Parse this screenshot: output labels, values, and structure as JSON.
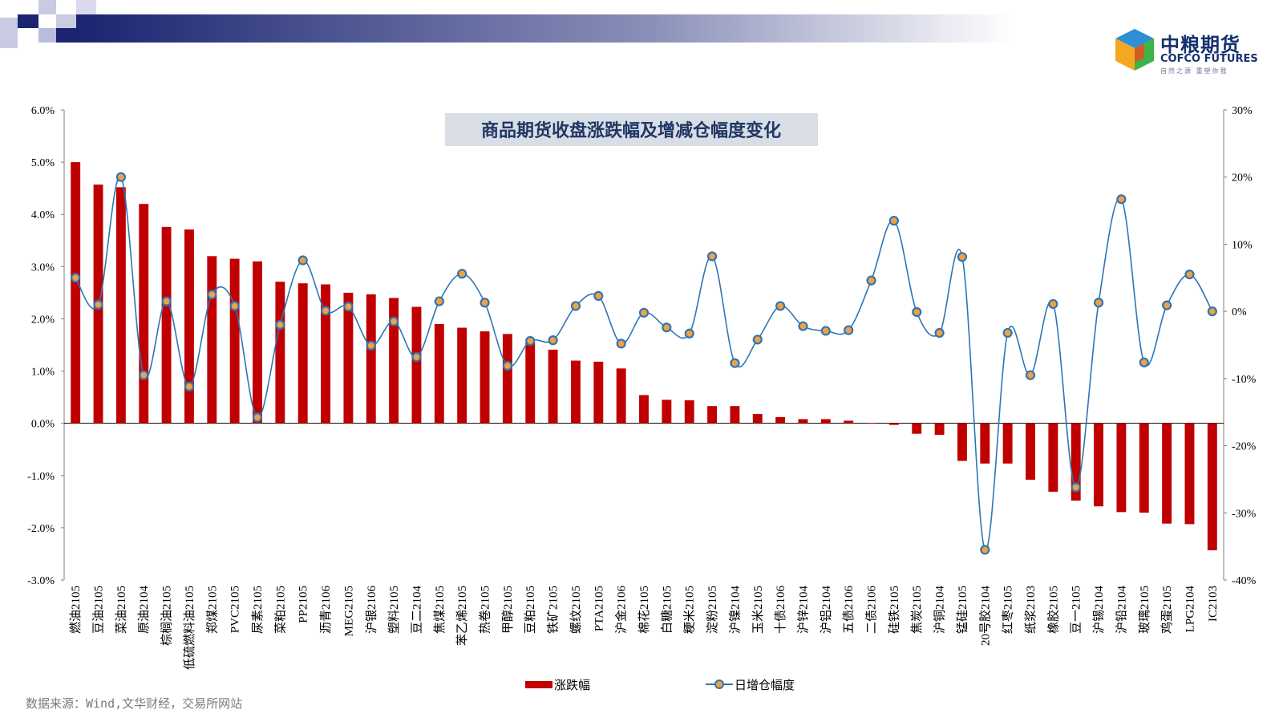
{
  "source": "数据来源：Wind,文华财经，交易所网站",
  "logo": {
    "cn": "中粮期货",
    "en": "COFCO FUTURES",
    "sub": "自然之源 重塑你我"
  },
  "colors": {
    "bar": "#c00000",
    "line": "#2e75b6",
    "marker": "#f2a040",
    "title_bg": "#d9dde6",
    "title_text": "#1f3864"
  },
  "chart_data": {
    "type": "bar",
    "title": "商品期货收盘涨跌幅及增减仓幅度变化",
    "categories": [
      "燃油2105",
      "豆油2105",
      "菜油2105",
      "原油2104",
      "棕榈油2105",
      "低硫燃料油2105",
      "郑煤2105",
      "PVC2105",
      "尿素2105",
      "菜粕2105",
      "PP2105",
      "沥青2106",
      "MEG2105",
      "沪银2106",
      "塑料2105",
      "豆二2104",
      "焦煤2105",
      "苯乙烯2105",
      "热卷2105",
      "甲醇2105",
      "豆粕2105",
      "铁矿2105",
      "螺纹2105",
      "PTA2105",
      "沪金2106",
      "棉花2105",
      "白糖2105",
      "粳米2105",
      "淀粉2105",
      "沪镍2104",
      "玉米2105",
      "十债2106",
      "沪锌2104",
      "沪铝2104",
      "五债2106",
      "二债2106",
      "硅铁2105",
      "焦炭2105",
      "沪铜2104",
      "锰硅2105",
      "20号胶2104",
      "红枣2105",
      "纸浆2103",
      "橡胶2105",
      "豆一2105",
      "沪锡2104",
      "沪铅2104",
      "玻璃2105",
      "鸡蛋2105",
      "LPG2104",
      "IC2103"
    ],
    "series": [
      {
        "name": "涨跌幅",
        "axis": "left",
        "type": "bar",
        "values": [
          5.0,
          4.57,
          4.52,
          4.2,
          3.76,
          3.71,
          3.2,
          3.15,
          3.1,
          2.71,
          2.68,
          2.66,
          2.5,
          2.47,
          2.4,
          2.23,
          1.9,
          1.83,
          1.76,
          1.71,
          1.55,
          1.41,
          1.2,
          1.18,
          1.05,
          0.54,
          0.45,
          0.44,
          0.33,
          0.33,
          0.18,
          0.12,
          0.08,
          0.08,
          0.05,
          0.01,
          -0.03,
          -0.2,
          -0.22,
          -0.72,
          -0.77,
          -0.77,
          -1.08,
          -1.31,
          -1.48,
          -1.59,
          -1.7,
          -1.71,
          -1.92,
          -1.93,
          -2.43
        ]
      },
      {
        "name": "日增仓幅度",
        "axis": "right",
        "type": "line",
        "values": [
          5.0,
          1.0,
          20.0,
          -9.5,
          1.5,
          -11.2,
          2.5,
          0.8,
          -15.8,
          -2.0,
          7.6,
          0.1,
          0.7,
          -5.1,
          -1.5,
          -6.8,
          1.5,
          5.6,
          1.3,
          -8.1,
          -4.4,
          -4.3,
          0.8,
          2.3,
          -4.8,
          -0.2,
          -2.4,
          -3.3,
          8.2,
          -7.7,
          -4.2,
          0.8,
          -2.2,
          -2.9,
          -2.8,
          4.6,
          13.5,
          -0.1,
          -3.2,
          8.1,
          -35.5,
          -3.2,
          -9.5,
          1.1,
          -26.2,
          1.3,
          16.7,
          -7.6,
          0.9,
          5.5,
          0.0
        ]
      }
    ],
    "y_left": {
      "ylim": [
        -3.0,
        6.0
      ],
      "ticks": [
        "6.0%",
        "5.0%",
        "4.0%",
        "3.0%",
        "2.0%",
        "1.0%",
        "0.0%",
        "-1.0%",
        "-2.0%",
        "-3.0%"
      ]
    },
    "y_right": {
      "ylim": [
        -40,
        30
      ],
      "ticks": [
        "30%",
        "20%",
        "10%",
        "0%",
        "-10%",
        "-20%",
        "-30%",
        "-40%"
      ]
    },
    "legend": [
      "涨跌幅",
      "日增仓幅度"
    ],
    "legend_position": "bottom"
  }
}
